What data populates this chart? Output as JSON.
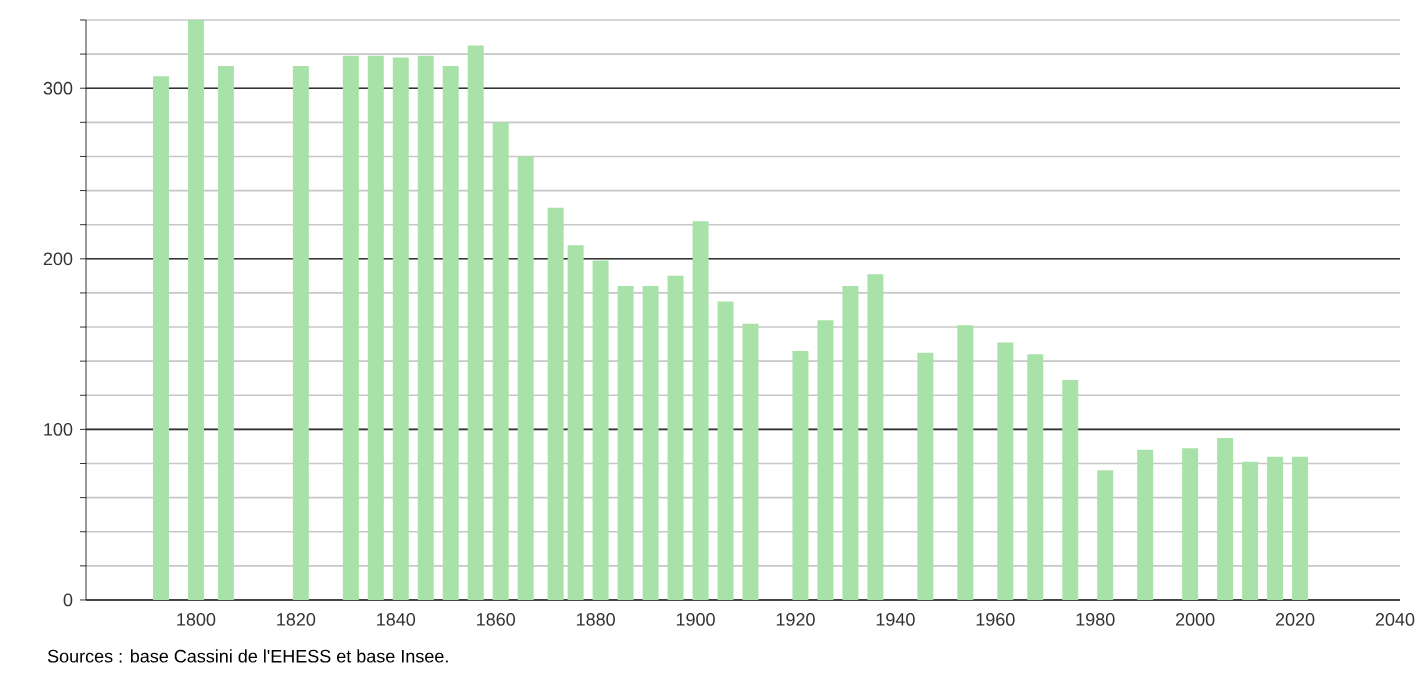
{
  "chart_data": {
    "type": "bar",
    "color": "#a8e2a8",
    "x": [
      1793,
      1800,
      1806,
      1821,
      1831,
      1836,
      1841,
      1846,
      1851,
      1856,
      1861,
      1866,
      1872,
      1876,
      1881,
      1886,
      1891,
      1896,
      1901,
      1906,
      1911,
      1921,
      1926,
      1931,
      1936,
      1946,
      1954,
      1962,
      1968,
      1975,
      1982,
      1990,
      1999,
      2006,
      2011,
      2016,
      2021
    ],
    "values": [
      307,
      340,
      313,
      313,
      319,
      319,
      318,
      319,
      313,
      325,
      280,
      260,
      230,
      208,
      199,
      184,
      184,
      190,
      222,
      175,
      162,
      146,
      164,
      184,
      191,
      145,
      161,
      151,
      144,
      129,
      76,
      88,
      89,
      95,
      81,
      84,
      84
    ],
    "xlim": [
      1778,
      2041
    ],
    "ylim": [
      0,
      340
    ],
    "xticks": [
      1800,
      1820,
      1840,
      1860,
      1880,
      1900,
      1920,
      1940,
      1960,
      1980,
      2000,
      2020,
      2040
    ],
    "yticks": [
      0,
      {
        "value": 20,
        "label": null
      },
      {
        "value": 40,
        "label": null
      },
      {
        "value": 60,
        "label": null
      },
      {
        "value": 80,
        "label": null
      },
      100,
      {
        "value": 120,
        "label": null
      },
      {
        "value": 140,
        "label": null
      },
      {
        "value": 160,
        "label": null
      },
      {
        "value": 180,
        "label": null
      },
      200,
      {
        "value": 220,
        "label": null
      },
      {
        "value": 240,
        "label": null
      },
      {
        "value": 260,
        "label": null
      },
      {
        "value": 280,
        "label": null
      },
      300,
      {
        "value": 320,
        "label": null
      },
      {
        "value": 340,
        "label": null
      }
    ],
    "grid": "y",
    "annotations": [
      "Sources : base Cassini de l'EHESS et base Insee."
    ]
  }
}
